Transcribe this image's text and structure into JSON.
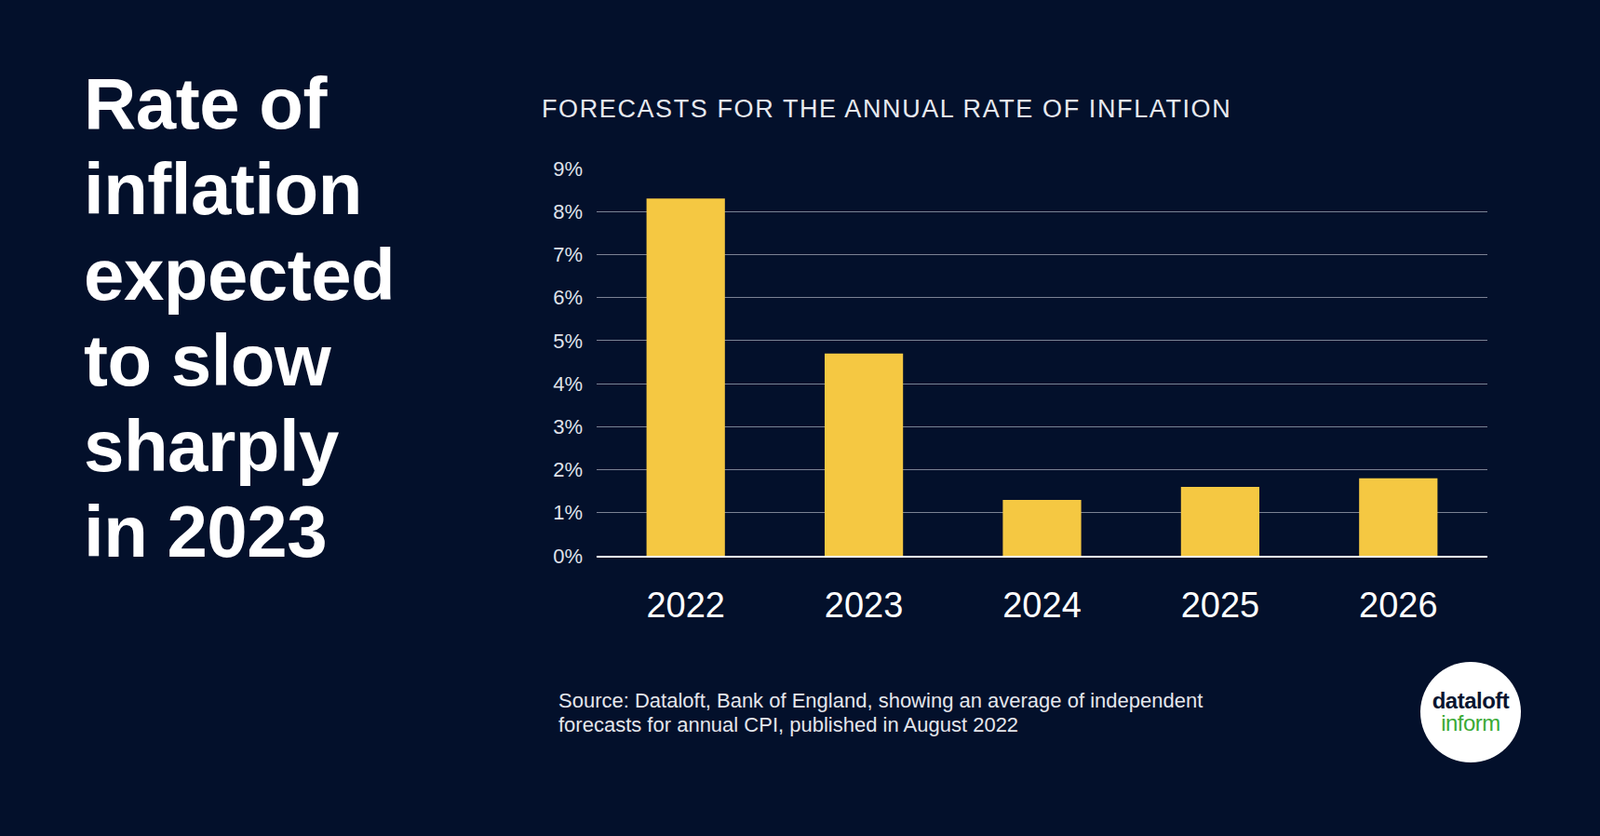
{
  "chart_data": {
    "type": "bar",
    "title": "Rate of\ninflation\nexpected\nto slow\nsharply\nin 2023",
    "subtitle": "FORECASTS FOR THE ANNUAL RATE OF INFLATION",
    "categories": [
      "2022",
      "2023",
      "2024",
      "2025",
      "2026"
    ],
    "values": [
      8.3,
      4.7,
      1.3,
      1.6,
      1.8
    ],
    "color": "#f5c842",
    "ylim": [
      0,
      9
    ],
    "yticks": [
      {
        "value": 0,
        "label": "0%"
      },
      {
        "value": 1,
        "label": "1%"
      },
      {
        "value": 2,
        "label": "2%"
      },
      {
        "value": 3,
        "label": "3%"
      },
      {
        "value": 4,
        "label": "4%"
      },
      {
        "value": 5,
        "label": "5%"
      },
      {
        "value": 6,
        "label": "6%"
      },
      {
        "value": 7,
        "label": "7%"
      },
      {
        "value": 8,
        "label": "8%"
      },
      {
        "value": 9,
        "label": "9%"
      }
    ],
    "grid": true,
    "annotations": [
      "Source: Dataloft, Bank of England, showing an average of independent\nforecasts for annual CPI, published in August 2022",
      "dataloft",
      "inform"
    ]
  }
}
